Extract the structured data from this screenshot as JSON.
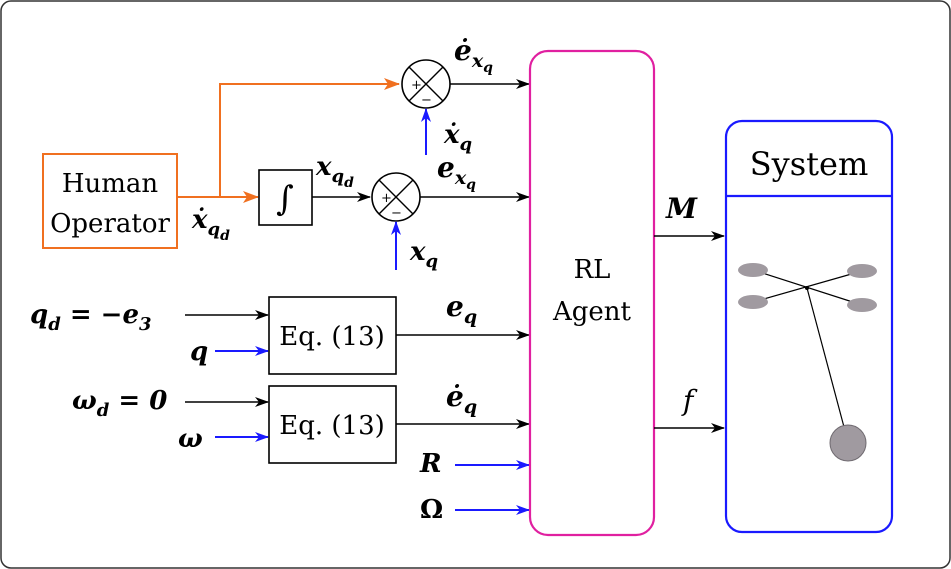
{
  "blocks": {
    "human_operator": [
      "Human",
      "Operator"
    ],
    "integrator": "∫",
    "eq_top": "Eq. (13)",
    "eq_bottom": "Eq. (13)",
    "agent": [
      "RL",
      "Agent"
    ],
    "system_title": "System"
  },
  "signals": {
    "xqd_dot": "ẋ",
    "xqd_dot_sub": "q",
    "xqd_dot_subsub": "d",
    "xqd": "x",
    "xqd_sub": "q",
    "xqd_subsub": "d",
    "exq_dot": "ė",
    "exq_dot_sub": "x",
    "exq_dot_subsub": "q",
    "xq_dot": "ẋ",
    "xq_dot_sub": "q",
    "exq": "e",
    "exq_sub": "x",
    "exq_subsub": "q",
    "xq": "x",
    "xq_sub": "q",
    "qd_eq": "q",
    "qd_eq_sub": "d",
    "qd_eq_rest": " = −e",
    "qd_eq_rest_sub": "3",
    "q": "q",
    "eq": "e",
    "eq_sub": "q",
    "wd_eq": "ω",
    "wd_eq_sub": "d",
    "wd_eq_rest": " = 0",
    "w": "ω",
    "eq_dot": "ė",
    "eq_dot_sub": "q",
    "R": "R",
    "Omega": "Ω",
    "M": "M",
    "f": "f"
  },
  "summing": {
    "plus": "+",
    "minus": "−"
  },
  "colors": {
    "operator_line": "#f07020",
    "feedback_line": "#1a1aff",
    "agent_border": "#e020a0",
    "system_border": "#1a1aff",
    "mass": "#a09aa0"
  }
}
